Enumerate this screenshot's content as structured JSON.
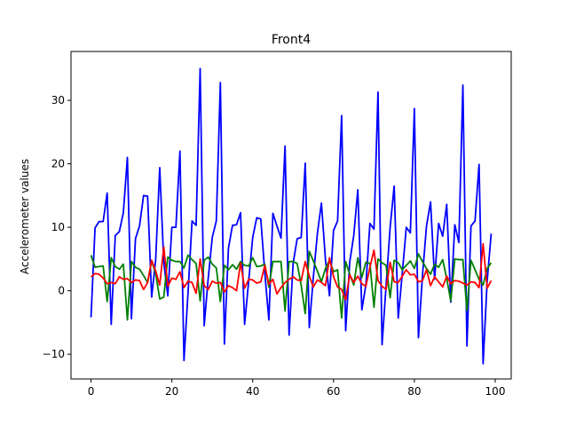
{
  "chart_data": {
    "type": "line",
    "title": "Front4",
    "xlabel": "",
    "ylabel": "Accelerometer values",
    "xlim": [
      -4.95,
      103.95
    ],
    "ylim": [
      -13.9,
      37.7
    ],
    "xticks": [
      0,
      20,
      40,
      60,
      80,
      100
    ],
    "yticks": [
      -10,
      0,
      10,
      20,
      30
    ],
    "grid": false,
    "legend": "none",
    "x": [
      0,
      1,
      2,
      3,
      4,
      5,
      6,
      7,
      8,
      9,
      10,
      11,
      12,
      13,
      14,
      15,
      16,
      17,
      18,
      19,
      20,
      21,
      22,
      23,
      24,
      25,
      26,
      27,
      28,
      29,
      30,
      31,
      32,
      33,
      34,
      35,
      36,
      37,
      38,
      39,
      40,
      41,
      42,
      43,
      44,
      45,
      46,
      47,
      48,
      49,
      50,
      51,
      52,
      53,
      54,
      55,
      56,
      57,
      58,
      59,
      60,
      61,
      62,
      63,
      64,
      65,
      66,
      67,
      68,
      69,
      70,
      71,
      72,
      73,
      74,
      75,
      76,
      77,
      78,
      79,
      80,
      81,
      82,
      83,
      84,
      85,
      86,
      87,
      88,
      89,
      90,
      91,
      92,
      93,
      94,
      95,
      96,
      97,
      98,
      99
    ],
    "series": [
      {
        "color": "#0000ff",
        "values": [
          -4.2,
          9.9,
          10.9,
          10.9,
          15.4,
          -5.3,
          8.7,
          9.3,
          12.3,
          21.0,
          -4.4,
          8.2,
          10.2,
          15.0,
          14.9,
          -1.0,
          4.9,
          19.4,
          4.5,
          -0.8,
          10.0,
          10.0,
          22.0,
          -11.0,
          -0.3,
          11.0,
          10.3,
          35.0,
          -5.5,
          2.0,
          8.4,
          11.0,
          32.8,
          -8.4,
          6.7,
          10.3,
          10.4,
          12.3,
          -5.3,
          1.5,
          8.4,
          11.5,
          11.3,
          2.8,
          -4.6,
          12.2,
          10.2,
          8.3,
          22.8,
          -7.0,
          4.3,
          8.2,
          8.4,
          20.1,
          -5.8,
          2.1,
          9.0,
          13.8,
          4.9,
          -0.8,
          9.5,
          11.0,
          27.6,
          -6.3,
          4.5,
          8.7,
          15.9,
          -3.0,
          0.9,
          10.6,
          9.7,
          31.3,
          -8.5,
          0.8,
          10.0,
          16.5,
          -4.3,
          2.7,
          10.0,
          9.1,
          28.7,
          -7.4,
          2.4,
          10.2,
          14.0,
          1.8,
          10.6,
          8.6,
          13.6,
          -1.8,
          10.4,
          7.6,
          32.4,
          -8.7,
          10.2,
          11.0,
          19.9,
          -11.5,
          1.5,
          9.0
        ]
      },
      {
        "color": "#008000",
        "values": [
          5.6,
          3.7,
          3.8,
          3.9,
          -1.7,
          5.2,
          3.8,
          3.4,
          4.2,
          -4.6,
          4.6,
          3.7,
          3.4,
          2.4,
          1.3,
          4.7,
          2.7,
          -1.3,
          -1.0,
          5.3,
          4.8,
          4.6,
          4.6,
          3.6,
          5.6,
          4.9,
          4.3,
          -1.6,
          4.8,
          5.3,
          4.2,
          3.6,
          -1.7,
          4.0,
          3.3,
          4.1,
          3.4,
          4.6,
          4.0,
          3.9,
          5.2,
          3.8,
          3.9,
          4.2,
          0.6,
          4.6,
          4.6,
          4.6,
          -3.2,
          4.6,
          4.6,
          4.3,
          0.8,
          -3.6,
          6.2,
          4.7,
          3.1,
          1.4,
          3.5,
          4.8,
          3.0,
          3.3,
          -4.3,
          4.6,
          2.6,
          0.9,
          5.2,
          2.1,
          4.5,
          4.3,
          -2.6,
          5.0,
          4.4,
          4.0,
          -1.1,
          4.8,
          4.4,
          3.3,
          4.0,
          4.7,
          3.5,
          5.8,
          4.6,
          3.5,
          2.6,
          4.2,
          3.7,
          4.9,
          1.9,
          -1.6,
          5.0,
          4.9,
          4.9,
          -3.1,
          4.8,
          3.3,
          1.8,
          0.9,
          3.5,
          4.4
        ]
      },
      {
        "color": "#ff0000",
        "values": [
          2.2,
          2.7,
          2.6,
          2.0,
          1.1,
          1.3,
          1.1,
          2.2,
          1.8,
          1.9,
          1.3,
          1.7,
          1.6,
          0.2,
          1.3,
          4.8,
          3.1,
          0.9,
          6.9,
          0.7,
          2.0,
          1.8,
          3.0,
          0.5,
          1.5,
          1.3,
          -0.4,
          5.0,
          0.8,
          0.2,
          1.5,
          1.2,
          1.3,
          -0.2,
          0.8,
          0.5,
          0.0,
          4.4,
          0.4,
          1.8,
          1.7,
          1.2,
          1.4,
          4.0,
          1.0,
          1.8,
          -0.5,
          0.5,
          1.3,
          1.8,
          2.2,
          1.7,
          1.6,
          4.6,
          2.3,
          0.6,
          1.7,
          1.3,
          0.8,
          5.2,
          2.2,
          0.6,
          0.2,
          -1.4,
          2.5,
          1.3,
          2.3,
          1.1,
          0.7,
          3.7,
          6.4,
          1.6,
          0.7,
          0.2,
          4.5,
          1.4,
          1.3,
          2.3,
          3.3,
          2.5,
          2.6,
          1.4,
          1.6,
          3.3,
          0.8,
          2.2,
          1.4,
          0.6,
          2.3,
          1.1,
          1.6,
          1.5,
          1.2,
          0.9,
          1.4,
          1.3,
          0.5,
          7.4,
          0.4,
          1.6
        ]
      }
    ]
  }
}
